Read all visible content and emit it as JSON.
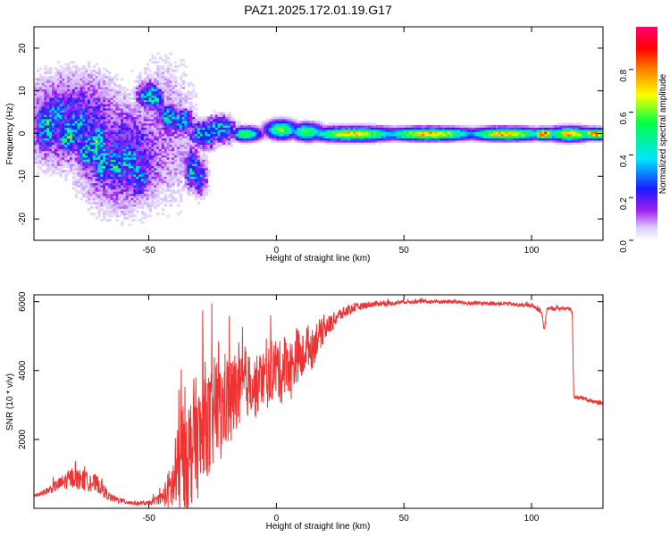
{
  "title": "PAZ1.2025.172.01.19.G17",
  "chart_data": [
    {
      "type": "heatmap",
      "xlabel": "Height of straight line (km)",
      "ylabel": "Frequency (Hz)",
      "xlim": [
        -95,
        128
      ],
      "ylim": [
        -25,
        25
      ],
      "xticks": [
        -50,
        0,
        50,
        100
      ],
      "yticks": [
        -20,
        -10,
        0,
        10,
        20
      ],
      "colorbar": {
        "label": "Normalized spectral amplitude",
        "range": [
          0.0,
          1.0
        ],
        "ticks": [
          "0.0",
          "0.2",
          "0.4",
          "0.6",
          "0.8"
        ],
        "colormap": [
          "#ffffff",
          "#dccbff",
          "#a020f0",
          "#1a1aff",
          "#00e5ff",
          "#00ff44",
          "#ffff00",
          "#ff7f00",
          "#ff0000",
          "#ff0077"
        ]
      },
      "blobs": [
        {
          "x": -80,
          "f": 3,
          "a": 0.25,
          "sx": 14,
          "sf": 7
        },
        {
          "x": -60,
          "f": -5,
          "a": 0.25,
          "sx": 12,
          "sf": 8
        },
        {
          "x": -45,
          "f": 0,
          "a": 0.12,
          "sx": 10,
          "sf": 12
        },
        {
          "x": -90,
          "f": 2,
          "a": 0.45,
          "sx": 3,
          "sf": 4
        },
        {
          "x": -86,
          "f": 5,
          "a": 0.4,
          "sx": 3,
          "sf": 3
        },
        {
          "x": -82,
          "f": 0,
          "a": 0.5,
          "sx": 3,
          "sf": 3
        },
        {
          "x": -78,
          "f": 2,
          "a": 0.45,
          "sx": 3,
          "sf": 3
        },
        {
          "x": -74,
          "f": -4,
          "a": 0.45,
          "sx": 3,
          "sf": 3
        },
        {
          "x": -70,
          "f": -2,
          "a": 0.5,
          "sx": 3,
          "sf": 3
        },
        {
          "x": -68,
          "f": -7,
          "a": 0.45,
          "sx": 3,
          "sf": 3
        },
        {
          "x": -63,
          "f": -7,
          "a": 0.45,
          "sx": 3,
          "sf": 3
        },
        {
          "x": -58,
          "f": -6,
          "a": 0.45,
          "sx": 3,
          "sf": 3
        },
        {
          "x": -54,
          "f": -10,
          "a": 0.4,
          "sx": 3,
          "sf": 3
        },
        {
          "x": -50,
          "f": 9,
          "a": 0.45,
          "sx": 3,
          "sf": 2
        },
        {
          "x": -47,
          "f": 8,
          "a": 0.4,
          "sx": 2,
          "sf": 2
        },
        {
          "x": -42,
          "f": 4,
          "a": 0.45,
          "sx": 3,
          "sf": 2
        },
        {
          "x": -37,
          "f": 3,
          "a": 0.4,
          "sx": 3,
          "sf": 2
        },
        {
          "x": -33,
          "f": -8,
          "a": 0.4,
          "sx": 2,
          "sf": 3
        },
        {
          "x": -30,
          "f": -10,
          "a": 0.3,
          "sx": 2,
          "sf": 3
        },
        {
          "x": -28,
          "f": 0,
          "a": 0.45,
          "sx": 4,
          "sf": 2
        },
        {
          "x": -22,
          "f": 1,
          "a": 0.4,
          "sx": 4,
          "sf": 2
        },
        {
          "x": -12,
          "f": 0,
          "a": 0.55,
          "sx": 4,
          "sf": 1
        },
        {
          "x": 2,
          "f": 1,
          "a": 0.6,
          "sx": 4,
          "sf": 1.3
        },
        {
          "x": 12,
          "f": 0.5,
          "a": 0.6,
          "sx": 4,
          "sf": 1.2
        },
        {
          "x": 30,
          "f": 0,
          "a": 0.7,
          "sx": 12,
          "sf": 1
        },
        {
          "x": 60,
          "f": 0,
          "a": 0.75,
          "sx": 12,
          "sf": 0.9
        },
        {
          "x": 90,
          "f": 0,
          "a": 0.75,
          "sx": 10,
          "sf": 0.9
        },
        {
          "x": 105,
          "f": 0,
          "a": 0.85,
          "sx": 3,
          "sf": 0.8
        },
        {
          "x": 115,
          "f": 0,
          "a": 0.75,
          "sx": 6,
          "sf": 1
        },
        {
          "x": 125,
          "f": 0,
          "a": 0.8,
          "sx": 4,
          "sf": 0.8
        }
      ]
    },
    {
      "type": "line",
      "xlabel": "Height of straight line (km)",
      "ylabel": "SNR (10 * v/v)",
      "xlim": [
        -95,
        128
      ],
      "ylim": [
        0,
        6200
      ],
      "xticks": [
        -50,
        0,
        50,
        100
      ],
      "yticks": [
        2000,
        4000,
        6000
      ],
      "color": "#ee3333",
      "x": [
        -95,
        -90,
        -85,
        -80,
        -75,
        -70,
        -65,
        -60,
        -55,
        -50,
        -45,
        -40,
        -38,
        -36,
        -34,
        -32,
        -30,
        -28,
        -26,
        -24,
        -22,
        -20,
        -18,
        -16,
        -14,
        -12,
        -10,
        -8,
        -6,
        -4,
        -2,
        0,
        2,
        4,
        6,
        8,
        10,
        12,
        14,
        16,
        18,
        20,
        22,
        24,
        26,
        28,
        30,
        35,
        40,
        45,
        50,
        55,
        60,
        65,
        70,
        75,
        80,
        85,
        90,
        95,
        100,
        104,
        105,
        106,
        110,
        115,
        116,
        116.5,
        120,
        124,
        128
      ],
      "y": [
        350,
        500,
        700,
        900,
        800,
        700,
        300,
        200,
        150,
        150,
        300,
        700,
        1200,
        1800,
        1500,
        2300,
        1800,
        2800,
        2200,
        3000,
        2600,
        3200,
        3000,
        3400,
        3300,
        3600,
        3600,
        3500,
        3800,
        3700,
        4000,
        4100,
        3900,
        4300,
        4000,
        4500,
        4300,
        4800,
        4600,
        5000,
        5100,
        5300,
        5400,
        5600,
        5650,
        5750,
        5800,
        5900,
        5950,
        5950,
        6000,
        6000,
        6000,
        6000,
        6000,
        5950,
        5950,
        5950,
        5950,
        5900,
        5900,
        5700,
        5150,
        5800,
        5800,
        5800,
        5700,
        3250,
        3200,
        3100,
        3050
      ],
      "noise": [
        60,
        100,
        200,
        300,
        300,
        250,
        120,
        80,
        60,
        60,
        180,
        900,
        1500,
        1800,
        1800,
        1600,
        1800,
        1500,
        1700,
        1500,
        1600,
        1400,
        1400,
        1200,
        1100,
        1000,
        900,
        900,
        800,
        900,
        900,
        900,
        900,
        800,
        900,
        800,
        700,
        600,
        600,
        500,
        400,
        300,
        250,
        200,
        180,
        150,
        120,
        100,
        80,
        70,
        60,
        60,
        60,
        60,
        60,
        60,
        60,
        60,
        60,
        60,
        60,
        60,
        60,
        60,
        60,
        60,
        60,
        60,
        60,
        60,
        60
      ]
    }
  ]
}
